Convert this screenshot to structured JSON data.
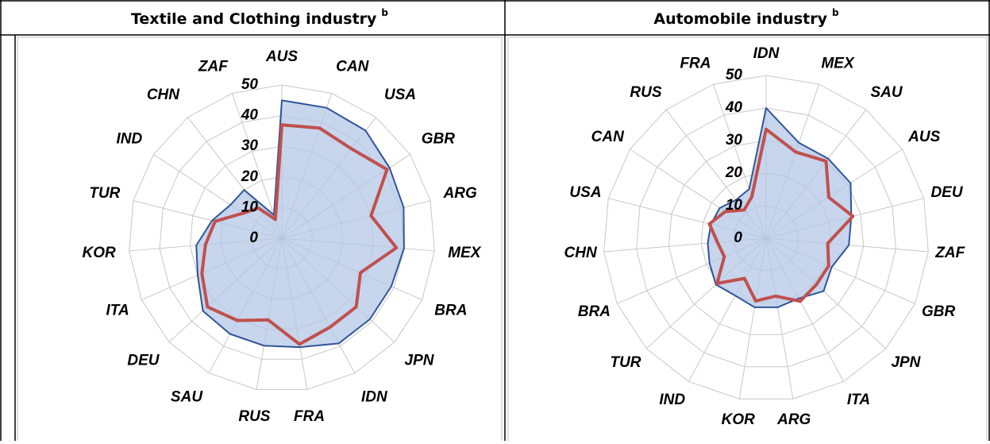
{
  "chart_data": [
    {
      "type": "radar",
      "title": "Textile and Clothing industry",
      "title_note": "b",
      "categories": [
        "AUS",
        "CAN",
        "USA",
        "GBR",
        "ARG",
        "MEX",
        "BRA",
        "JPN",
        "IDN",
        "FRA",
        "RUS",
        "SAU",
        "DEU",
        "ITA",
        "KOR",
        "TUR",
        "IND",
        "CHN",
        "ZAF"
      ],
      "series": [
        {
          "color": "#2f5597",
          "fill": "#b4c7e7",
          "values": [
            45,
            45,
            44.5,
            42,
            41,
            40,
            39,
            39,
            39,
            36,
            35.5,
            35.5,
            35,
            30,
            28,
            23.5,
            20,
            20,
            8
          ]
        },
        {
          "color": "#c0504d",
          "values": [
            37,
            38,
            37,
            41,
            30,
            37.5,
            28,
            33,
            33,
            35,
            27,
            30.5,
            33,
            28.5,
            25,
            22.5,
            15,
            12.5,
            6.5
          ]
        }
      ],
      "ylim": [
        0,
        50
      ],
      "yticks": [
        0,
        10,
        20,
        30,
        40,
        50
      ],
      "grid": true
    },
    {
      "type": "radar",
      "title": "Automobile industry",
      "title_note": "b",
      "categories": [
        "IDN",
        "MEX",
        "SAU",
        "AUS",
        "DEU",
        "ZAF",
        "GBR",
        "JPN",
        "ITA",
        "ARG",
        "KOR",
        "IND",
        "TUR",
        "BRA",
        "CHN",
        "USA",
        "CAN",
        "RUS",
        "FRA"
      ],
      "series": [
        {
          "color": "#2f5597",
          "fill": "#b4c7e7",
          "values": [
            40,
            31,
            31,
            31,
            27,
            25.5,
            22,
            24,
            21,
            21.5,
            21.5,
            20,
            21,
            19,
            18,
            17.5,
            17,
            15,
            16
          ]
        },
        {
          "color": "#c0504d",
          "values": [
            33.5,
            28,
            30,
            23,
            27.5,
            19,
            21,
            21,
            22,
            18,
            19.5,
            14,
            20.5,
            14,
            15,
            18,
            15,
            11,
            13.5
          ]
        }
      ],
      "ylim": [
        0,
        50
      ],
      "yticks": [
        0,
        10,
        20,
        30,
        40,
        50
      ],
      "grid": true
    }
  ]
}
